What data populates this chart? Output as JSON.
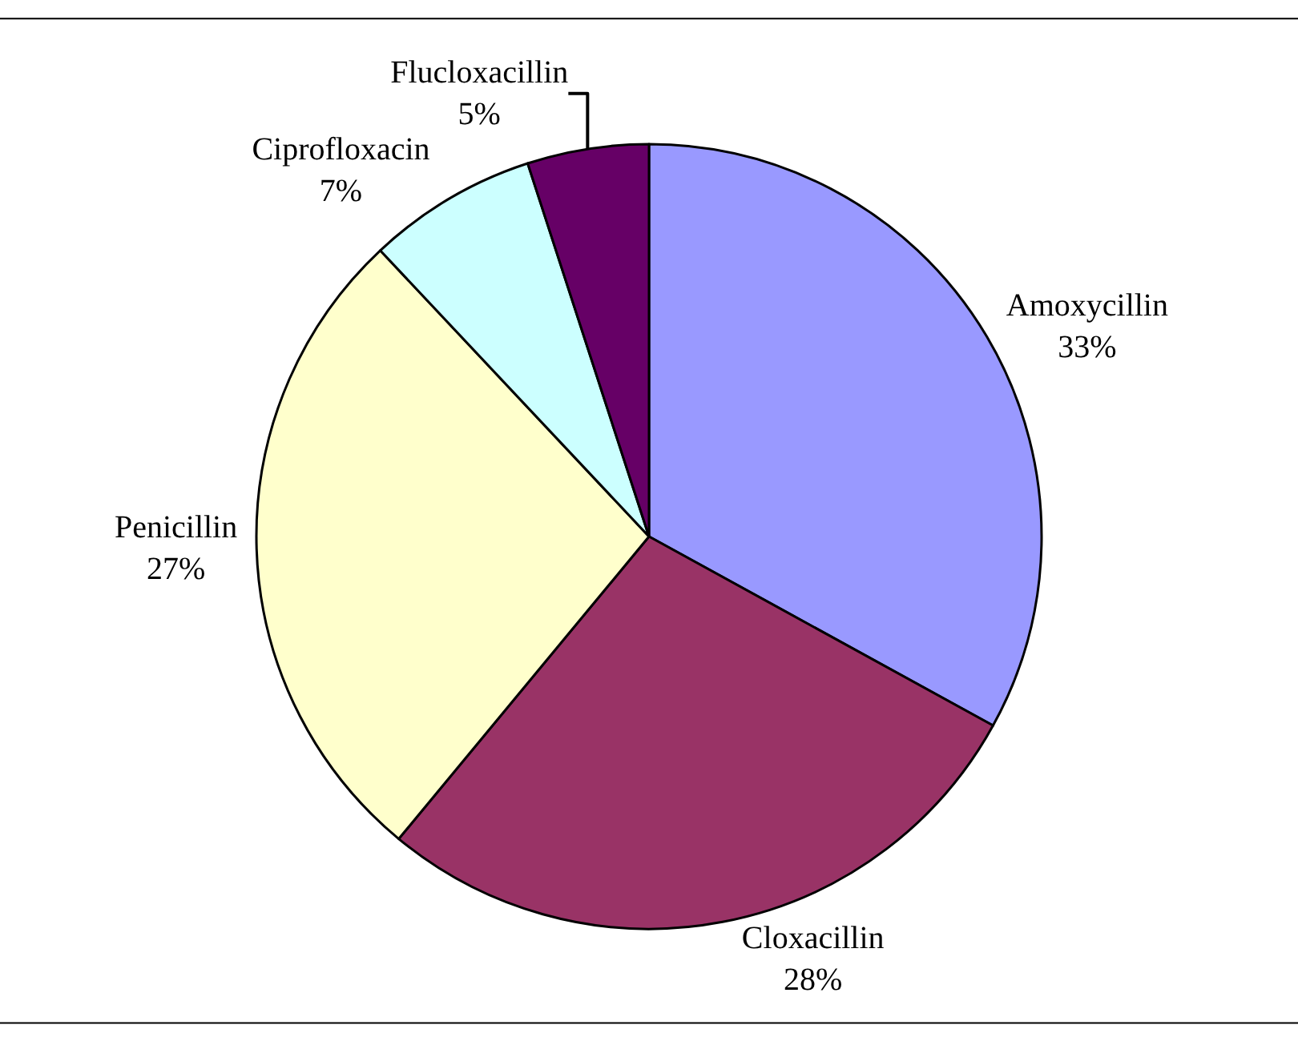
{
  "chart_data": {
    "type": "pie",
    "categories": [
      "Amoxycillin",
      "Cloxacillin",
      "Penicillin",
      "Ciprofloxacin",
      "Flucloxacillin"
    ],
    "values": [
      33,
      28,
      27,
      7,
      5
    ],
    "colors": [
      "#9999ff",
      "#993366",
      "#ffffcc",
      "#ccffff",
      "#660066"
    ],
    "value_labels": [
      "33%",
      "28%",
      "27%",
      "7%",
      "5%"
    ],
    "legend": false
  }
}
